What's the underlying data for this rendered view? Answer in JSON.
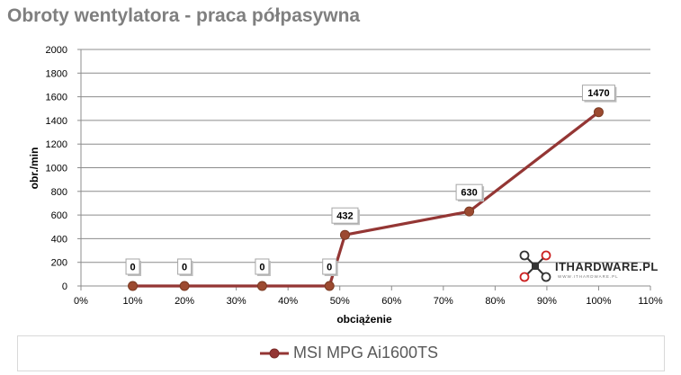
{
  "chart_data": {
    "type": "line",
    "title": "Obroty wentylatora - praca półpasywna",
    "xlabel": "obciążenie",
    "ylabel": "obr./min",
    "xlim": [
      0,
      110
    ],
    "ylim": [
      0,
      2000
    ],
    "x_ticks": [
      "0%",
      "10%",
      "20%",
      "30%",
      "40%",
      "50%",
      "60%",
      "70%",
      "80%",
      "90%",
      "100%",
      "110%"
    ],
    "y_ticks": [
      "0",
      "200",
      "400",
      "600",
      "800",
      "1000",
      "1200",
      "1400",
      "1600",
      "1800",
      "2000"
    ],
    "grid": true,
    "legend_position": "bottom",
    "series": [
      {
        "name": "MSI MPG Ai1600TS",
        "color": "#943634",
        "x": [
          10,
          20,
          35,
          48,
          51,
          75,
          100
        ],
        "y": [
          0,
          0,
          0,
          0,
          432,
          630,
          1470
        ],
        "labels": [
          "0",
          "0",
          "0",
          "0",
          "432",
          "630",
          "1470"
        ]
      }
    ]
  },
  "watermark": {
    "text": "ITHARDWARE.PL",
    "subtext": "WWW.ITHARDWARE.PL",
    "icon": "drone-icon"
  }
}
